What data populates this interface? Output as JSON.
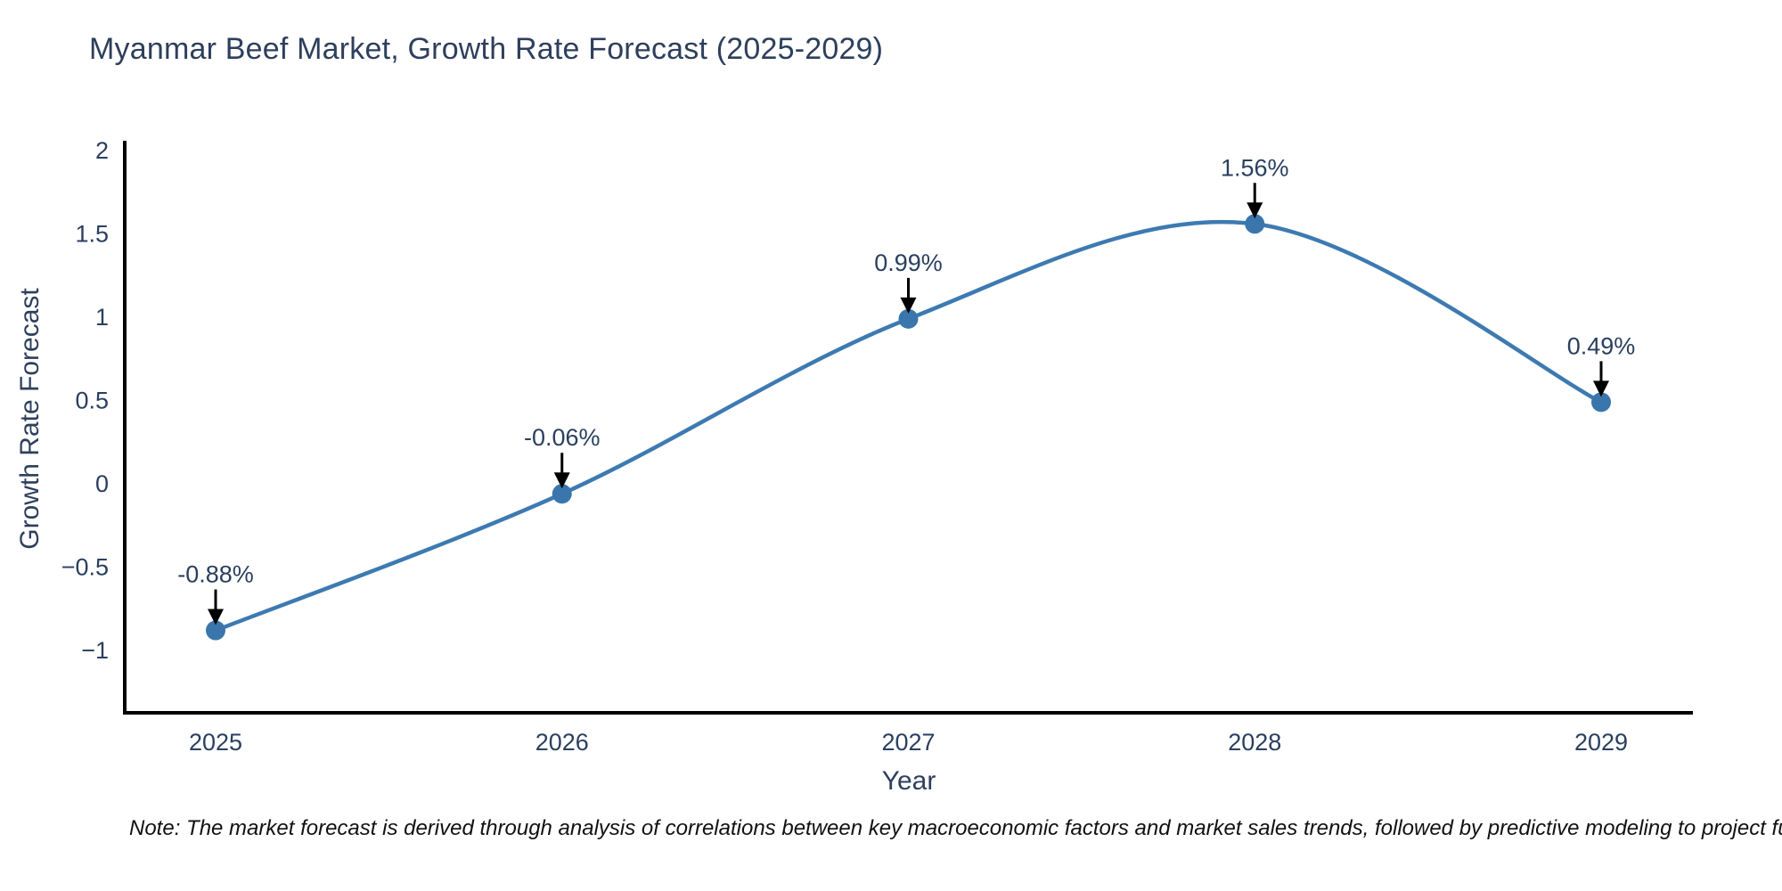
{
  "title": "Myanmar Beef Market, Growth Rate Forecast (2025-2029)",
  "footnote": "Note: The market forecast is derived through analysis of correlations between key macroeconomic factors and market sales trends, followed by predictive modeling to project future sa",
  "chart_data": {
    "type": "line",
    "title": "Myanmar Beef Market, Growth Rate Forecast (2025-2029)",
    "xlabel": "Year",
    "ylabel": "Growth Rate Forecast",
    "categories": [
      "2025",
      "2026",
      "2027",
      "2028",
      "2029"
    ],
    "x": [
      2025,
      2026,
      2027,
      2028,
      2029
    ],
    "values": [
      -0.88,
      -0.06,
      0.99,
      1.56,
      0.49
    ],
    "point_labels": [
      "-0.88%",
      "-0.06%",
      "0.99%",
      "1.56%",
      "0.49%"
    ],
    "ytick_values": [
      2,
      1.5,
      1,
      0.5,
      0,
      -0.5,
      -1
    ],
    "ytick_labels": [
      "2",
      "1.5",
      "1",
      "0.5",
      "0",
      "−0.5",
      "−1"
    ],
    "ylim": [
      -1.36,
      2.06
    ],
    "line_shape": "spline",
    "grid": false,
    "legend": false,
    "line_color": "#3d7ab1",
    "marker_color": "#3a76ac",
    "axis_color": "#000000",
    "tick_color": "#2a3f5f",
    "annotation_text_color": "#2a3f5f",
    "annotation_arrow_color": "#000000"
  }
}
